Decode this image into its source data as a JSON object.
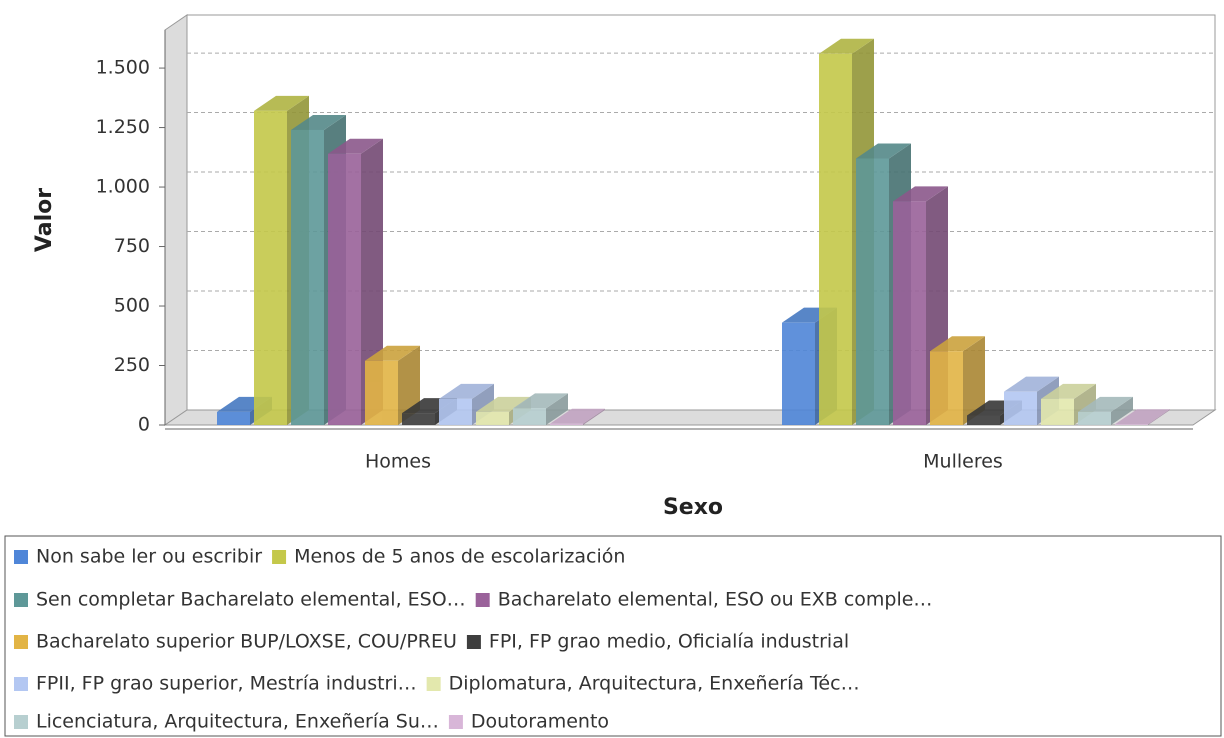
{
  "chart_data": {
    "type": "bar3d",
    "x_label": "Sexo",
    "y_label": "Valor",
    "categories": [
      "Homes",
      "Mulleres"
    ],
    "ylim": [
      0,
      1660
    ],
    "yticks": [
      0,
      250,
      500,
      750,
      {
        "value": 1000,
        "label": "1.000"
      },
      {
        "value": 1250,
        "label": "1.250"
      },
      {
        "value": 1500,
        "label": "1.500"
      }
    ],
    "grid": true,
    "series": [
      {
        "name": "Non sabe ler ou escribir",
        "color": "#4f86d8",
        "values": [
          55,
          430
        ]
      },
      {
        "name": "Menos de 5 anos de escolarización",
        "color": "#c4c84a",
        "values": [
          1320,
          1560
        ]
      },
      {
        "name": "Sen completar Bacharelato elemental, ESO…",
        "color": "#5e9898",
        "values": [
          1240,
          1120
        ]
      },
      {
        "name": "Bacharelato elemental, ESO ou EXB comple…",
        "color": "#9a629a",
        "values": [
          1140,
          940
        ]
      },
      {
        "name": "Bacharelato superior BUP/LOXSE, COU/PREU",
        "color": "#e2b445",
        "values": [
          270,
          310
        ]
      },
      {
        "name": "FPI, FP grao medio, Oficialía industrial",
        "color": "#3e3e3e",
        "values": [
          50,
          40
        ]
      },
      {
        "name": "FPII, FP grao superior, Mestría industri…",
        "color": "#b3c7f2",
        "values": [
          110,
          140
        ]
      },
      {
        "name": "Diplomatura, Arquitectura, Enxeñería Téc…",
        "color": "#e3e8ad",
        "values": [
          55,
          110
        ]
      },
      {
        "name": "Licenciatura, Arquitectura, Enxeñería Su…",
        "color": "#b7cfd0",
        "values": [
          70,
          55
        ]
      },
      {
        "name": "Doutoramento",
        "color": "#d8b6d8",
        "values": [
          5,
          3
        ]
      }
    ]
  }
}
